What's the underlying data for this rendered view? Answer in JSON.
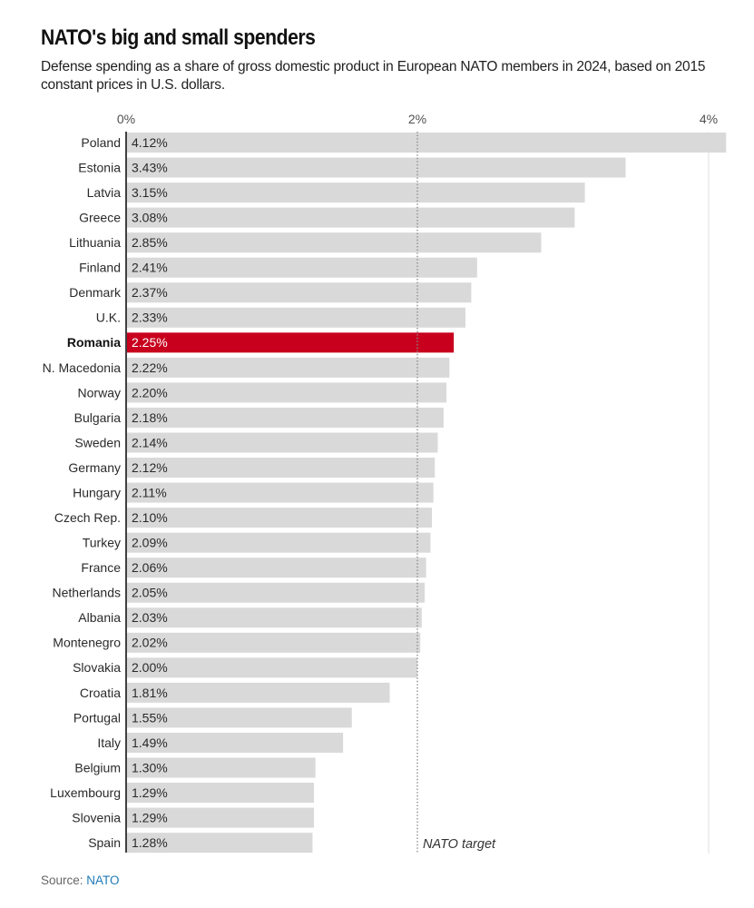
{
  "chart_data": {
    "type": "bar",
    "orientation": "horizontal",
    "title": "NATO's big and small spenders",
    "subtitle": "Defense spending as a share of gross domestic product in European NATO members in 2024, based on 2015 constant prices in U.S. dollars.",
    "xlabel": "",
    "ylabel": "",
    "xlim": [
      0,
      4.12
    ],
    "grid": true,
    "x_ticks": [
      {
        "value": 0,
        "label": "0%"
      },
      {
        "value": 2,
        "label": "2%"
      },
      {
        "value": 4,
        "label": "4%"
      }
    ],
    "categories": [
      "Poland",
      "Estonia",
      "Latvia",
      "Greece",
      "Lithuania",
      "Finland",
      "Denmark",
      "U.K.",
      "Romania",
      "N. Macedonia",
      "Norway",
      "Bulgaria",
      "Sweden",
      "Germany",
      "Hungary",
      "Czech Rep.",
      "Turkey",
      "France",
      "Netherlands",
      "Albania",
      "Montenegro",
      "Slovakia",
      "Croatia",
      "Portugal",
      "Italy",
      "Belgium",
      "Luxembourg",
      "Slovenia",
      "Spain"
    ],
    "values": [
      4.12,
      3.43,
      3.15,
      3.08,
      2.85,
      2.41,
      2.37,
      2.33,
      2.25,
      2.22,
      2.2,
      2.18,
      2.14,
      2.12,
      2.11,
      2.1,
      2.09,
      2.06,
      2.05,
      2.03,
      2.02,
      2.0,
      1.81,
      1.55,
      1.49,
      1.3,
      1.29,
      1.29,
      1.28
    ],
    "value_labels": [
      "4.12%",
      "3.43%",
      "3.15%",
      "3.08%",
      "2.85%",
      "2.41%",
      "2.37%",
      "2.33%",
      "2.25%",
      "2.22%",
      "2.20%",
      "2.18%",
      "2.14%",
      "2.12%",
      "2.11%",
      "2.10%",
      "2.09%",
      "2.06%",
      "2.05%",
      "2.03%",
      "2.02%",
      "2.00%",
      "1.81%",
      "1.55%",
      "1.49%",
      "1.30%",
      "1.29%",
      "1.29%",
      "1.28%"
    ],
    "highlight": "Romania",
    "reference_line": {
      "value": 2,
      "label": "NATO target",
      "style": "dotted"
    },
    "colors": {
      "bar": "#d9d9d9",
      "highlight": "#c8001e",
      "reference_line": "#8a8a8a",
      "axis": "#111111",
      "gridline": "#e4e4e4"
    }
  },
  "footer": {
    "source_label": "Source:",
    "source_link": "NATO"
  }
}
